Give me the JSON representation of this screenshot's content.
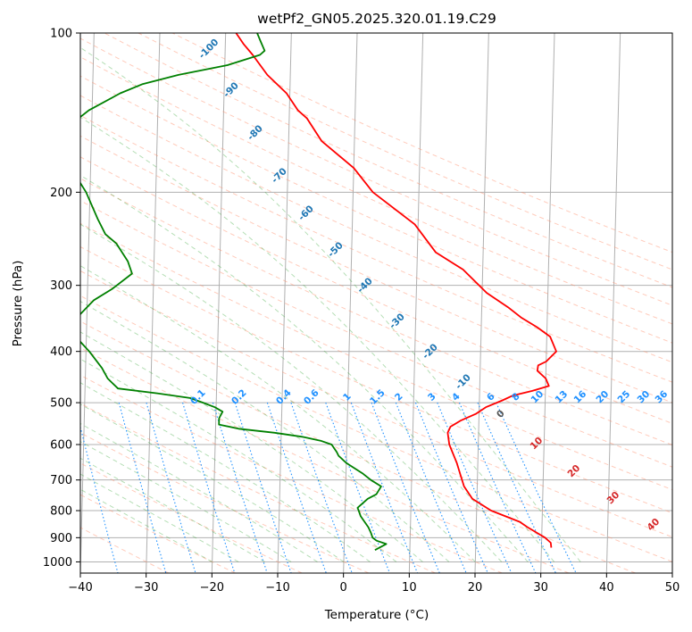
{
  "chart_data": {
    "type": "line",
    "chart_kind": "skew-T log-P diagram",
    "title": "wetPf2_GN05.2025.320.01.19.C29",
    "xlabel": "Temperature (°C)",
    "ylabel": "Pressure (hPa)",
    "xlim": [
      -40,
      50
    ],
    "ylim": [
      1050,
      100
    ],
    "y_scale": "log",
    "x_ticks": [
      -40,
      -30,
      -20,
      -10,
      0,
      10,
      20,
      30,
      40,
      50
    ],
    "y_ticks": [
      100,
      200,
      300,
      400,
      500,
      600,
      700,
      800,
      900,
      1000
    ],
    "grid": true,
    "series": [
      {
        "color": "#ff0000",
        "points": [
          [
            940,
            31.5
          ],
          [
            920,
            31.4
          ],
          [
            900,
            30.5
          ],
          [
            880,
            29.2
          ],
          [
            860,
            27.8
          ],
          [
            840,
            26.6
          ],
          [
            800,
            22.2
          ],
          [
            760,
            19.3
          ],
          [
            720,
            18.0
          ],
          [
            690,
            17.5
          ],
          [
            650,
            16.8
          ],
          [
            600,
            15.6
          ],
          [
            570,
            15.3
          ],
          [
            555,
            15.7
          ],
          [
            540,
            17.3
          ],
          [
            525,
            19.5
          ],
          [
            510,
            21.0
          ],
          [
            495,
            23.5
          ],
          [
            485,
            25.0
          ],
          [
            475,
            28.0
          ],
          [
            465,
            30.5
          ],
          [
            450,
            30.0
          ],
          [
            435,
            28.7
          ],
          [
            425,
            28.8
          ],
          [
            418,
            30.0
          ],
          [
            400,
            31.5
          ],
          [
            375,
            30.5
          ],
          [
            360,
            28.5
          ],
          [
            345,
            26.0
          ],
          [
            330,
            24.0
          ],
          [
            310,
            20.7
          ],
          [
            280,
            17.0
          ],
          [
            260,
            12.8
          ],
          [
            230,
            9.5
          ],
          [
            200,
            3.0
          ],
          [
            180,
            0.0
          ],
          [
            160,
            -5.0
          ],
          [
            145,
            -7.3
          ],
          [
            140,
            -8.7
          ],
          [
            130,
            -10.5
          ],
          [
            120,
            -13.5
          ],
          [
            110,
            -15.8
          ],
          [
            105,
            -17.2
          ],
          [
            100,
            -18.4
          ]
        ]
      },
      {
        "color": "#008000",
        "points": [
          [
            950,
            4.7
          ],
          [
            925,
            6.4
          ],
          [
            912,
            4.9
          ],
          [
            900,
            4.3
          ],
          [
            880,
            4.0
          ],
          [
            860,
            3.6
          ],
          [
            820,
            2.4
          ],
          [
            790,
            1.9
          ],
          [
            760,
            3.4
          ],
          [
            745,
            4.7
          ],
          [
            720,
            5.4
          ],
          [
            700,
            3.8
          ],
          [
            680,
            2.5
          ],
          [
            650,
            0.0
          ],
          [
            630,
            -1.2
          ],
          [
            620,
            -1.5
          ],
          [
            600,
            -2.3
          ],
          [
            590,
            -4.0
          ],
          [
            580,
            -6.8
          ],
          [
            570,
            -11.0
          ],
          [
            560,
            -16.5
          ],
          [
            550,
            -19.5
          ],
          [
            535,
            -19.5
          ],
          [
            520,
            -19.0
          ],
          [
            510,
            -20.2
          ],
          [
            500,
            -22.0
          ],
          [
            490,
            -24.0
          ],
          [
            480,
            -29.0
          ],
          [
            470,
            -35.0
          ],
          [
            450,
            -36.6
          ],
          [
            430,
            -37.5
          ],
          [
            400,
            -39.5
          ],
          [
            380,
            -41.2
          ],
          [
            370,
            -42.0
          ],
          [
            355,
            -41.8
          ],
          [
            340,
            -41.0
          ],
          [
            320,
            -39.0
          ],
          [
            305,
            -36.3
          ],
          [
            285,
            -33.3
          ],
          [
            270,
            -34.0
          ],
          [
            250,
            -35.8
          ],
          [
            240,
            -37.5
          ],
          [
            225,
            -38.7
          ],
          [
            200,
            -40.6
          ],
          [
            180,
            -43.0
          ],
          [
            165,
            -44.5
          ],
          [
            150,
            -43.5
          ],
          [
            140,
            -40.5
          ],
          [
            130,
            -35.8
          ],
          [
            125,
            -32.5
          ],
          [
            120,
            -27.0
          ],
          [
            115,
            -19.6
          ],
          [
            110,
            -14.7
          ],
          [
            108,
            -14.0
          ],
          [
            104,
            -14.6
          ],
          [
            100,
            -15.2
          ]
        ]
      }
    ],
    "mixing_ratio_labels": [
      "0.1",
      "0.2",
      "0.4",
      "0.6",
      "1",
      "1.5",
      "2",
      "3",
      "4",
      "6",
      "8",
      "10",
      "13",
      "16",
      "20",
      "25",
      "30",
      "36"
    ],
    "isotherm_labels": [
      "-100",
      "-90",
      "-80",
      "-70",
      "-60",
      "-50",
      "-40",
      "-30",
      "-20",
      "-10"
    ],
    "warm_isotherm_labels": [
      "0",
      "10",
      "20",
      "30",
      "40"
    ],
    "colors": {
      "temperature": "#ff0000",
      "dewpoint": "#008000",
      "isotherm_label": "#1f77b4",
      "warm_label": "#d62728",
      "mixing_ratio": "#1e90ff",
      "dry_adiabat": "#ff8c69",
      "moist_adiabat": "#2ca02c",
      "grid": "#b0b0b0"
    }
  }
}
